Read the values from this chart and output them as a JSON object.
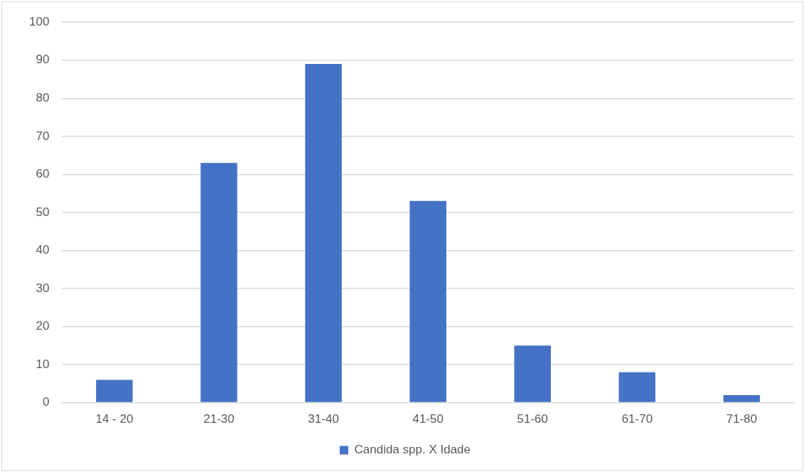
{
  "chart_data": {
    "type": "bar",
    "categories": [
      "14 - 20",
      "21-30",
      "31-40",
      "41-50",
      "51-60",
      "61-70",
      "71-80"
    ],
    "series": [
      {
        "name": "Candida spp. X Idade",
        "color": "#4472c4",
        "values": [
          6,
          63,
          89,
          53,
          15,
          8,
          2
        ]
      }
    ],
    "ylim": [
      0,
      100
    ],
    "yticks": [
      0,
      10,
      20,
      30,
      40,
      50,
      60,
      70,
      80,
      90,
      100
    ],
    "grid": "y",
    "legend": "bottom"
  }
}
